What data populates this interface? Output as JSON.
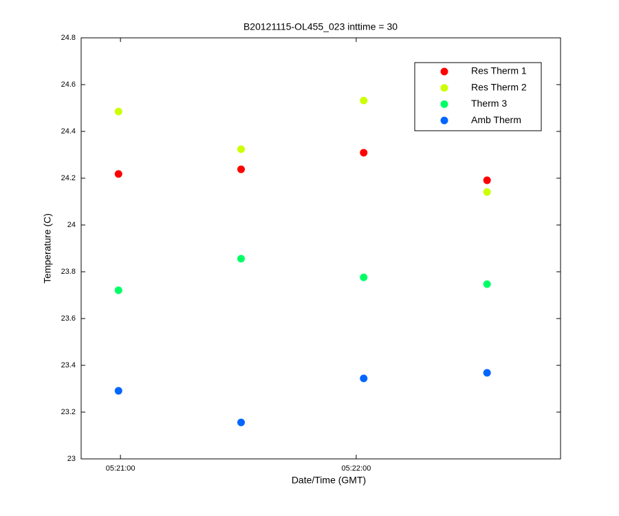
{
  "chart_data": {
    "type": "scatter",
    "title": "B20121115-OL455_023 inttime = 30",
    "xlabel": "Date/Time (GMT)",
    "ylabel": "Temperature (C)",
    "x": [
      "05:20:59.5",
      "05:21:30.7",
      "05:22:01.9",
      "05:22:33.3"
    ],
    "series": [
      {
        "name": "Res Therm 1",
        "color": "#ff0000",
        "values": [
          24.218,
          24.238,
          24.309,
          24.191
        ]
      },
      {
        "name": "Res Therm 2",
        "color": "#ccff00",
        "values": [
          24.485,
          24.324,
          24.532,
          24.141
        ]
      },
      {
        "name": "Therm 3",
        "color": "#00ff66",
        "values": [
          23.721,
          23.856,
          23.776,
          23.747
        ]
      },
      {
        "name": "Amb Therm",
        "color": "#0066ff",
        "values": [
          23.291,
          23.156,
          23.344,
          23.368
        ]
      }
    ],
    "xlim": [
      "05:20:50",
      "05:22:52"
    ],
    "xticks": [
      "05:21:00",
      "05:22:00"
    ],
    "ylim": [
      23,
      24.8
    ],
    "yticks": [
      23,
      23.2,
      23.4,
      23.6,
      23.8,
      24,
      24.2,
      24.4,
      24.6,
      24.8
    ],
    "grid": false,
    "legend": "northeast"
  }
}
